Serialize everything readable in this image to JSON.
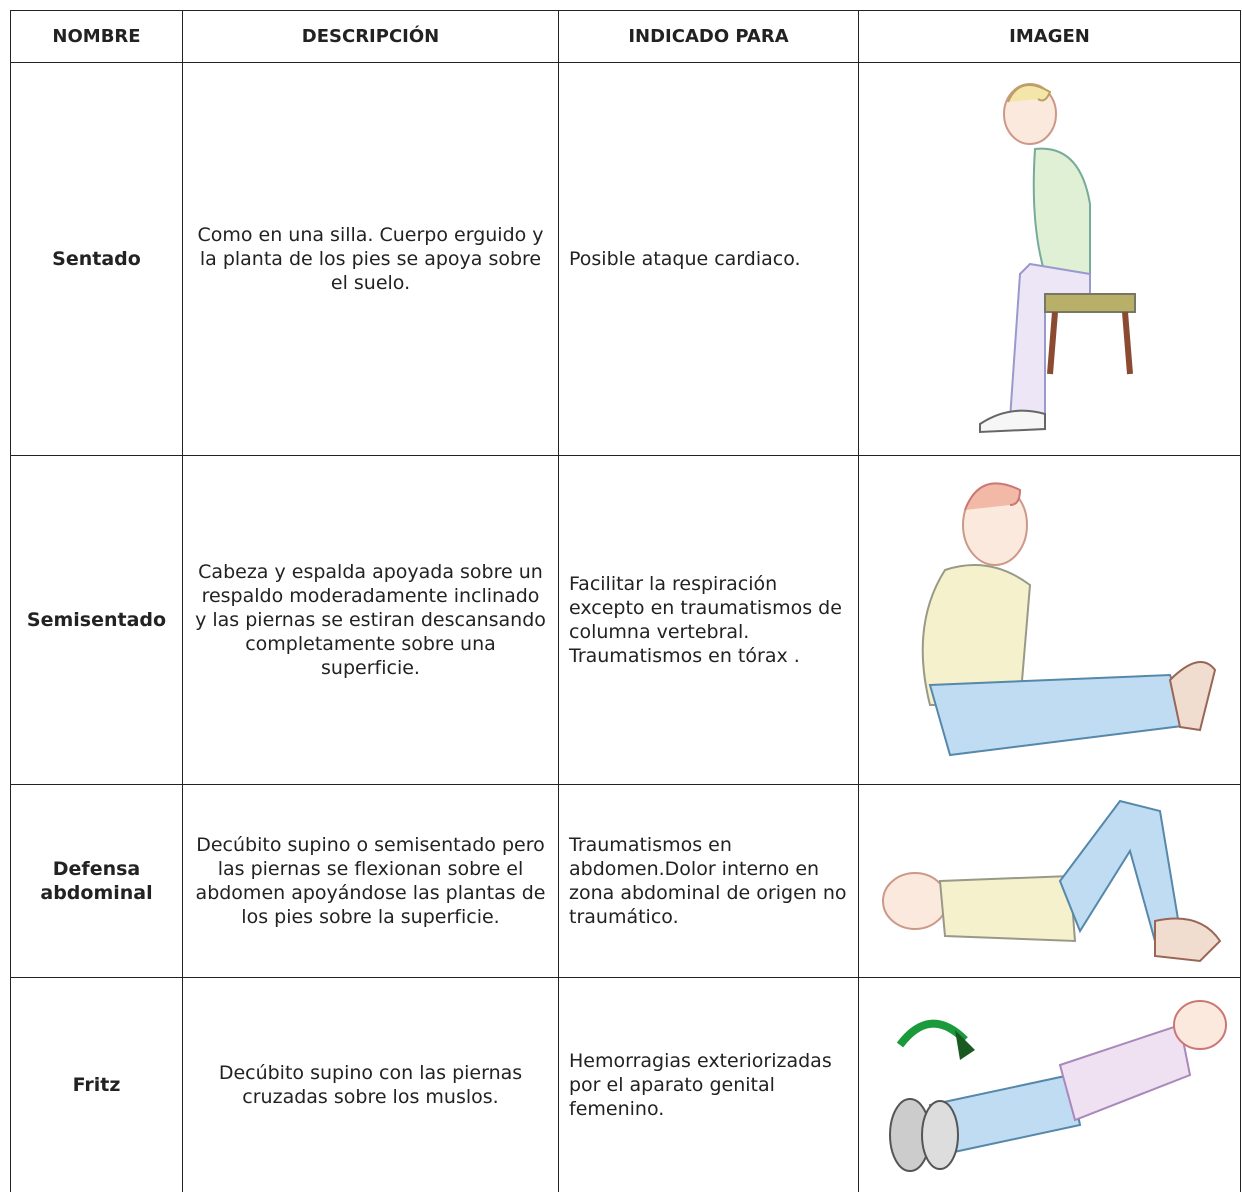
{
  "table": {
    "header": [
      "NOMBRE",
      "DESCRIPCIÓN",
      "INDICADO PARA",
      "IMAGEN"
    ],
    "rows": [
      [
        "Sentado",
        "Como en una silla. Cuerpo erguido y la planta de los pies se apoya sobre el suelo.",
        "Posible ataque cardiaco."
      ],
      [
        "Semisentado",
        "Cabeza y espalda apoyada sobre un respaldo moderadamente inclinado y las piernas se estiran descansando completamente sobre una superficie.",
        "Facilitar la respiración excepto en traumatismos de columna vertebral. Traumatismos en tórax ."
      ],
      [
        "Defensa abdominal",
        "Decúbito supino o semisentado pero las piernas se flexionan sobre el abdomen apoyándose las plantas de los pies sobre la superficie.",
        "Traumatismos en abdomen.Dolor interno en zona abdominal de origen no traumático."
      ],
      [
        "Fritz",
        "Decúbito supino con las piernas cruzadas sobre los muslos.",
        "Hemorragias exteriorizadas por el aparato genital femenino."
      ]
    ]
  }
}
